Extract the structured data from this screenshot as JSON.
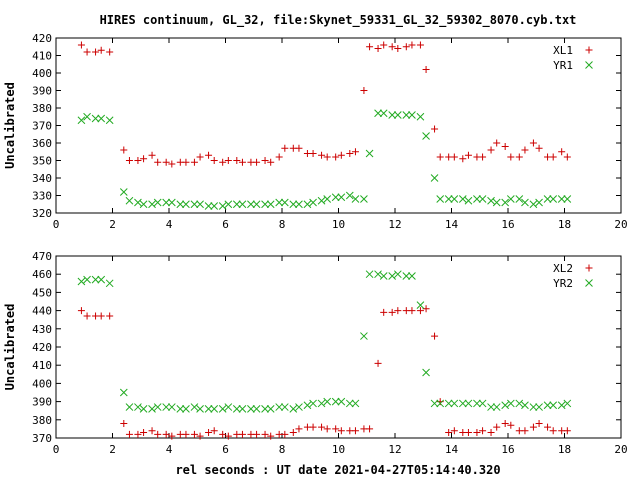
{
  "title": "HIRES continuum, GL_32, file:Skynet_59331_GL_32_59302_8070.cyb.txt",
  "xlabel": "rel seconds : UT date 2021-04-27T05:14:40.320",
  "colors": {
    "series_1": "#cc0000",
    "series_2": "#22aa22"
  },
  "chart_data": [
    {
      "type": "scatter",
      "ylabel": "Uncalibrated",
      "xlim": [
        0,
        20
      ],
      "ylim": [
        320,
        420
      ],
      "xticks": [
        0,
        2,
        4,
        6,
        8,
        10,
        12,
        14,
        16,
        18,
        20
      ],
      "yticks": [
        320,
        330,
        340,
        350,
        360,
        370,
        380,
        390,
        400,
        410,
        420
      ],
      "grid": false,
      "legend_position": "top-right",
      "series": [
        {
          "name": "XL1",
          "marker": "plus",
          "x": [
            0.9,
            1.1,
            1.4,
            1.6,
            1.9,
            2.4,
            2.6,
            2.9,
            3.1,
            3.4,
            3.6,
            3.9,
            4.1,
            4.4,
            4.6,
            4.9,
            5.1,
            5.4,
            5.6,
            5.9,
            6.1,
            6.4,
            6.6,
            6.9,
            7.1,
            7.4,
            7.6,
            7.9,
            8.1,
            8.4,
            8.6,
            8.9,
            9.1,
            9.4,
            9.6,
            9.9,
            10.1,
            10.4,
            10.6,
            10.9,
            11.1,
            11.4,
            11.6,
            11.9,
            12.1,
            12.4,
            12.6,
            12.9,
            13.1,
            13.4,
            13.6,
            13.9,
            14.1,
            14.4,
            14.6,
            14.9,
            15.1,
            15.4,
            15.6,
            15.9,
            16.1,
            16.4,
            16.6,
            16.9,
            17.1,
            17.4,
            17.6,
            17.9,
            18.1
          ],
          "y": [
            416,
            412,
            412,
            413,
            412,
            356,
            350,
            350,
            351,
            353,
            349,
            349,
            348,
            349,
            349,
            349,
            352,
            353,
            350,
            349,
            350,
            350,
            349,
            349,
            349,
            350,
            349,
            352,
            357,
            357,
            357,
            354,
            354,
            353,
            352,
            352,
            353,
            354,
            355,
            390,
            415,
            414,
            416,
            415,
            414,
            415,
            416,
            416,
            402,
            368,
            352,
            352,
            352,
            351,
            353,
            352,
            352,
            356,
            360,
            358,
            352,
            352,
            356,
            360,
            357,
            352,
            352,
            355,
            352
          ],
          "note_unused": ""
        },
        {
          "name": "YR1",
          "marker": "x",
          "x": [
            0.9,
            1.1,
            1.4,
            1.6,
            1.9,
            2.4,
            2.6,
            2.9,
            3.1,
            3.4,
            3.6,
            3.9,
            4.1,
            4.4,
            4.6,
            4.9,
            5.1,
            5.4,
            5.6,
            5.9,
            6.1,
            6.4,
            6.6,
            6.9,
            7.1,
            7.4,
            7.6,
            7.9,
            8.1,
            8.4,
            8.6,
            8.9,
            9.1,
            9.4,
            9.6,
            9.9,
            10.1,
            10.4,
            10.6,
            10.9,
            11.1,
            11.4,
            11.6,
            11.9,
            12.1,
            12.4,
            12.6,
            12.9,
            13.1,
            13.4,
            13.6,
            13.9,
            14.1,
            14.4,
            14.6,
            14.9,
            15.1,
            15.4,
            15.6,
            15.9,
            16.1,
            16.4,
            16.6,
            16.9,
            17.1,
            17.4,
            17.6,
            17.9,
            18.1
          ],
          "y": [
            373,
            375,
            374,
            374,
            373,
            332,
            327,
            326,
            325,
            325,
            326,
            326,
            326,
            325,
            325,
            325,
            325,
            324,
            324,
            324,
            325,
            325,
            325,
            325,
            325,
            325,
            325,
            326,
            326,
            325,
            325,
            325,
            326,
            327,
            328,
            329,
            329,
            330,
            328,
            328,
            354,
            377,
            377,
            376,
            376,
            376,
            376,
            375,
            364,
            340,
            328,
            328,
            328,
            328,
            327,
            328,
            328,
            327,
            326,
            326,
            328,
            328,
            326,
            325,
            326,
            328,
            328,
            328,
            328
          ],
          "note_unused": ""
        }
      ]
    },
    {
      "type": "scatter",
      "ylabel": "Uncalibrated",
      "xlim": [
        0,
        20
      ],
      "ylim": [
        370,
        470
      ],
      "xticks": [
        0,
        2,
        4,
        6,
        8,
        10,
        12,
        14,
        16,
        18,
        20
      ],
      "yticks": [
        370,
        380,
        390,
        400,
        410,
        420,
        430,
        440,
        450,
        460,
        470
      ],
      "grid": false,
      "legend_position": "top-right",
      "series": [
        {
          "name": "XL2",
          "marker": "plus",
          "x": [
            0.9,
            1.1,
            1.4,
            1.6,
            1.9,
            2.4,
            2.6,
            2.9,
            3.1,
            3.4,
            3.6,
            3.9,
            4.1,
            4.4,
            4.6,
            4.9,
            5.1,
            5.4,
            5.6,
            5.9,
            6.1,
            6.4,
            6.6,
            6.9,
            7.1,
            7.4,
            7.6,
            7.9,
            8.1,
            8.4,
            8.6,
            8.9,
            9.1,
            9.4,
            9.6,
            9.9,
            10.1,
            10.4,
            10.6,
            10.9,
            11.1,
            11.4,
            11.6,
            11.9,
            12.1,
            12.4,
            12.6,
            12.9,
            13.1,
            13.4,
            13.6,
            13.9,
            14.1,
            14.4,
            14.6,
            14.9,
            15.1,
            15.4,
            15.6,
            15.9,
            16.1,
            16.4,
            16.6,
            16.9,
            17.1,
            17.4,
            17.6,
            17.9,
            18.1
          ],
          "y": [
            440,
            437,
            437,
            437,
            437,
            378,
            372,
            372,
            373,
            374,
            372,
            372,
            371,
            372,
            372,
            372,
            371,
            373,
            374,
            372,
            371,
            372,
            372,
            372,
            372,
            372,
            371,
            372,
            372,
            373,
            375,
            376,
            376,
            376,
            375,
            375,
            374,
            374,
            374,
            375,
            375,
            411,
            439,
            439,
            440,
            440,
            440,
            440,
            441,
            426,
            390,
            373,
            374,
            373,
            373,
            373,
            374,
            373,
            376,
            378,
            377,
            374,
            374,
            376,
            378,
            376,
            374,
            374,
            374
          ],
          "note_unused": ""
        },
        {
          "name": "YR2",
          "marker": "x",
          "x": [
            0.9,
            1.1,
            1.4,
            1.6,
            1.9,
            2.4,
            2.6,
            2.9,
            3.1,
            3.4,
            3.6,
            3.9,
            4.1,
            4.4,
            4.6,
            4.9,
            5.1,
            5.4,
            5.6,
            5.9,
            6.1,
            6.4,
            6.6,
            6.9,
            7.1,
            7.4,
            7.6,
            7.9,
            8.1,
            8.4,
            8.6,
            8.9,
            9.1,
            9.4,
            9.6,
            9.9,
            10.1,
            10.4,
            10.6,
            10.9,
            11.1,
            11.4,
            11.6,
            11.9,
            12.1,
            12.4,
            12.6,
            12.9,
            13.1,
            13.4,
            13.6,
            13.9,
            14.1,
            14.4,
            14.6,
            14.9,
            15.1,
            15.4,
            15.6,
            15.9,
            16.1,
            16.4,
            16.6,
            16.9,
            17.1,
            17.4,
            17.6,
            17.9,
            18.1
          ],
          "y": [
            456,
            457,
            457,
            457,
            455,
            395,
            387,
            387,
            386,
            386,
            387,
            387,
            387,
            386,
            386,
            387,
            386,
            386,
            386,
            386,
            387,
            386,
            386,
            386,
            386,
            386,
            386,
            387,
            387,
            386,
            387,
            388,
            389,
            389,
            390,
            390,
            390,
            389,
            389,
            426,
            460,
            460,
            459,
            459,
            460,
            459,
            459,
            443,
            406,
            389,
            389,
            389,
            389,
            389,
            389,
            389,
            389,
            387,
            387,
            388,
            389,
            389,
            388,
            387,
            387,
            388,
            388,
            388,
            389
          ],
          "note_unused": ""
        }
      ]
    }
  ]
}
